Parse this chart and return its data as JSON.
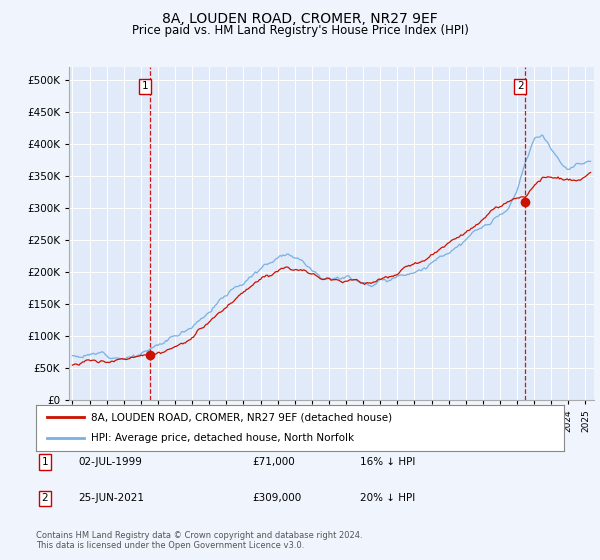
{
  "title": "8A, LOUDEN ROAD, CROMER, NR27 9EF",
  "subtitle": "Price paid vs. HM Land Registry's House Price Index (HPI)",
  "background_color": "#f0f4fc",
  "plot_bg_color": "#e0eaf8",
  "ylim": [
    0,
    520000
  ],
  "yticks": [
    0,
    50000,
    100000,
    150000,
    200000,
    250000,
    300000,
    350000,
    400000,
    450000,
    500000
  ],
  "xlim_start": 1994.8,
  "xlim_end": 2025.5,
  "sale1_x": 1999.54,
  "sale1_y": 71000,
  "sale2_x": 2021.49,
  "sale2_y": 309000,
  "dashed_line_color": "#cc0000",
  "legend1_label": "8A, LOUDEN ROAD, CROMER, NR27 9EF (detached house)",
  "legend2_label": "HPI: Average price, detached house, North Norfolk",
  "footer": "Contains HM Land Registry data © Crown copyright and database right 2024.\nThis data is licensed under the Open Government Licence v3.0.",
  "hpi_color": "#7ab0e0",
  "price_line_color": "#cc1100",
  "grid_color": "#ffffff"
}
